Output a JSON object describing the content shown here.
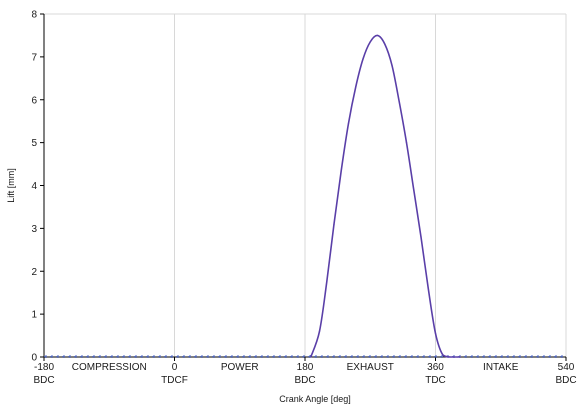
{
  "chart_data": {
    "type": "line",
    "xlabel": "Crank Angle [deg]",
    "ylabel": "Lift [mm]",
    "xlim": [
      -180,
      540
    ],
    "ylim": [
      0,
      8
    ],
    "grid": true,
    "y_ticks": [
      {
        "value": 0,
        "label": "0"
      },
      {
        "value": 1,
        "label": "1"
      },
      {
        "value": 2,
        "label": "2"
      },
      {
        "value": 3,
        "label": "3"
      },
      {
        "value": 4,
        "label": "4"
      },
      {
        "value": 5,
        "label": "5"
      },
      {
        "value": 6,
        "label": "6"
      },
      {
        "value": 7,
        "label": "7"
      },
      {
        "value": 8,
        "label": "8"
      }
    ],
    "x_ticks": [
      {
        "value": -180,
        "label": "-180",
        "sublabel": "BDC"
      },
      {
        "value": 0,
        "label": "0",
        "sublabel": "TDCF"
      },
      {
        "value": 180,
        "label": "180",
        "sublabel": "BDC"
      },
      {
        "value": 360,
        "label": "360",
        "sublabel": "TDC"
      },
      {
        "value": 540,
        "label": "540",
        "sublabel": "BDC"
      }
    ],
    "stroke_labels": [
      {
        "label": "COMPRESSION",
        "x": -90
      },
      {
        "label": "POWER",
        "x": 90
      },
      {
        "label": "EXHAUST",
        "x": 270
      },
      {
        "label": "INTAKE",
        "x": 450
      }
    ],
    "series": [
      {
        "color": "#5a3fa8",
        "x": [
          188,
          200,
          210,
          220,
          230,
          240,
          250,
          260,
          270,
          280,
          290,
          300,
          310,
          320,
          330,
          340,
          350,
          360,
          370,
          380,
          390,
          394
        ],
        "y": [
          0,
          0.6,
          1.75,
          3.1,
          4.35,
          5.45,
          6.3,
          6.95,
          7.35,
          7.5,
          7.3,
          6.8,
          5.95,
          5.0,
          3.9,
          2.8,
          1.6,
          0.55,
          0.05,
          0,
          0,
          0
        ]
      }
    ],
    "baseline_markers": {
      "y": 0,
      "spacing": 6,
      "color": "#4a64c8"
    },
    "colors": {
      "grid": "#d8d8d8",
      "axis": "#000000"
    }
  }
}
